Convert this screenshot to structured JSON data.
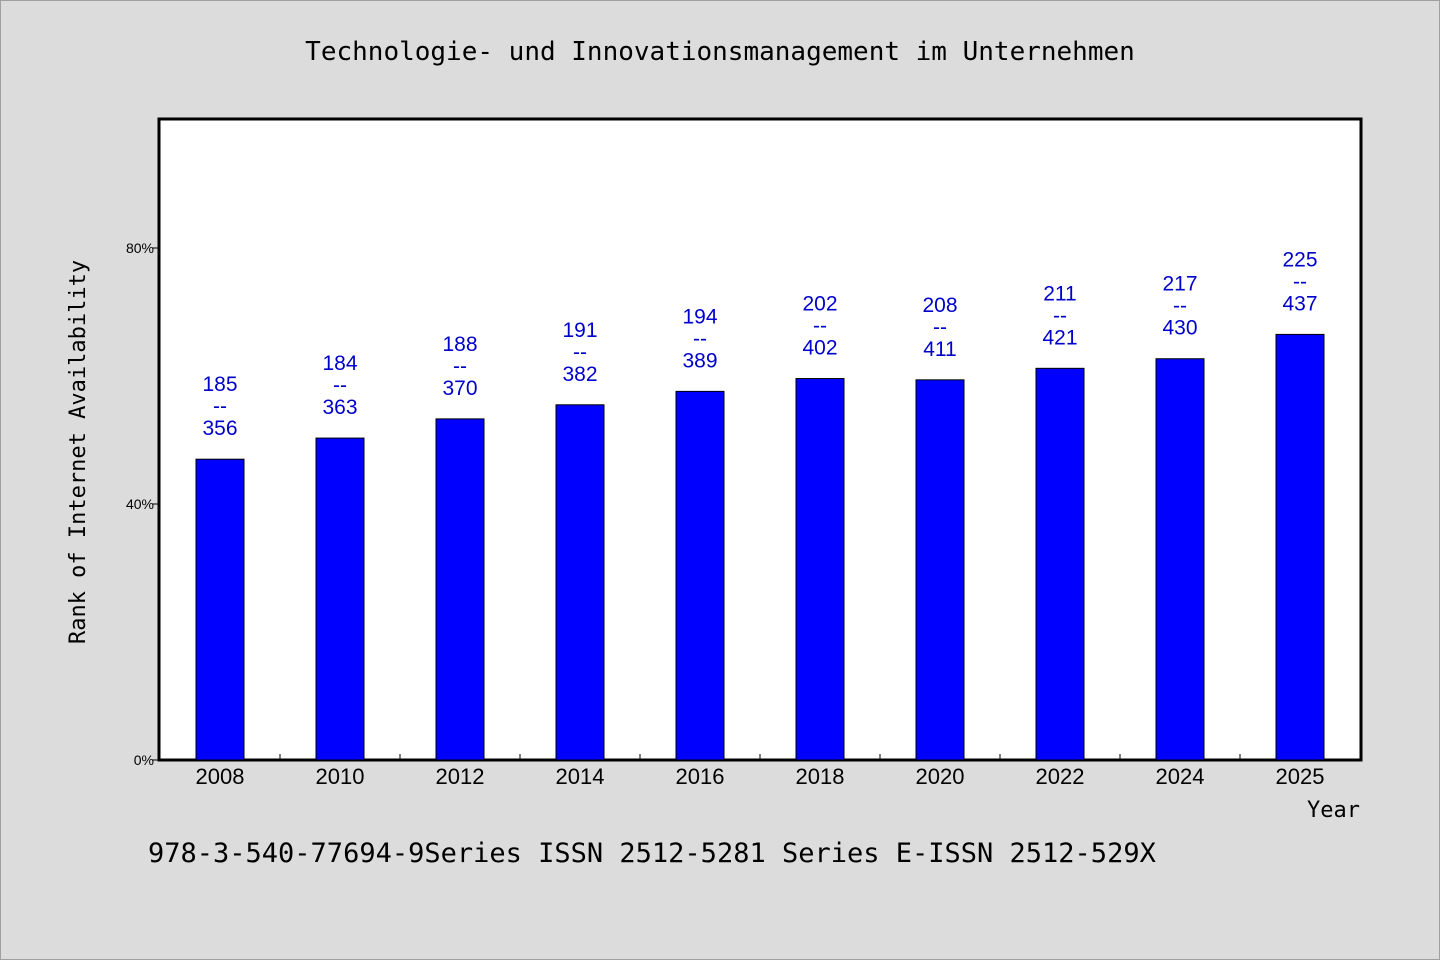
{
  "chart_data": {
    "type": "bar",
    "title": "Technologie- und Innovationsmanagement im Unternehmen",
    "xlabel": "Year",
    "ylabel": "Rank of Internet Availability",
    "footer": "978-3-540-77694-9Series ISSN 2512-5281 Series E-ISSN 2512-529X",
    "categories": [
      "2008",
      "2010",
      "2012",
      "2014",
      "2016",
      "2018",
      "2020",
      "2022",
      "2024",
      "2025"
    ],
    "values": [
      47,
      50.3,
      53.3,
      55.5,
      57.6,
      59.6,
      59.4,
      61.2,
      62.7,
      66.5
    ],
    "data_labels": [
      [
        "185",
        "--",
        "356"
      ],
      [
        "184",
        "--",
        "363"
      ],
      [
        "188",
        "--",
        "370"
      ],
      [
        "191",
        "--",
        "382"
      ],
      [
        "194",
        "--",
        "389"
      ],
      [
        "202",
        "--",
        "402"
      ],
      [
        "208",
        "--",
        "411"
      ],
      [
        "211",
        "--",
        "421"
      ],
      [
        "217",
        "--",
        "430"
      ],
      [
        "225",
        "--",
        "437"
      ]
    ],
    "ylim": [
      0,
      100
    ],
    "yticks": [
      0,
      40,
      80
    ],
    "ytick_labels": [
      "0%",
      "40%",
      "80%"
    ],
    "grid": false,
    "colors": {
      "bar": "#0000ff",
      "label": "#0000cc",
      "background": "#dcdcdc",
      "plot_bg": "#ffffff"
    }
  }
}
